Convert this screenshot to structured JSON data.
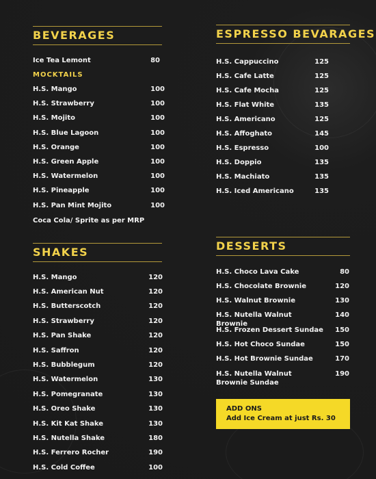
{
  "beverages": {
    "title": "BEVERAGES",
    "items": [
      {
        "name": "Ice Tea Lemont",
        "price": 80
      }
    ],
    "mocktails": {
      "title": "MOCKTAILS",
      "items": [
        {
          "name": "H.S. Mango",
          "price": 100
        },
        {
          "name": "H.S. Strawberry",
          "price": 100
        },
        {
          "name": "H.S. Mojito",
          "price": 100
        },
        {
          "name": "H.S. Blue Lagoon",
          "price": 100
        },
        {
          "name": "H.S. Orange",
          "price": 100
        },
        {
          "name": "H.S. Green Apple",
          "price": 100
        },
        {
          "name": "H.S. Watermelon",
          "price": 100
        },
        {
          "name": "H.S. Pineapple",
          "price": 100
        },
        {
          "name": "H.S. Pan Mint Mojito",
          "price": 100
        }
      ]
    },
    "note": "Coca Cola/ Sprite as per MRP"
  },
  "shakes": {
    "title": "SHAKES",
    "items": [
      {
        "name": "H.S. Mango",
        "price": 120
      },
      {
        "name": "H.S. American Nut",
        "price": 120
      },
      {
        "name": "H.S. Butterscotch",
        "price": 120
      },
      {
        "name": "H.S. Strawberry",
        "price": 120
      },
      {
        "name": "H.S. Pan Shake",
        "price": 120
      },
      {
        "name": "H.S. Saffron",
        "price": 120
      },
      {
        "name": "H.S. Bubblegum",
        "price": 120
      },
      {
        "name": "H.S. Watermelon",
        "price": 130
      },
      {
        "name": "H.S. Pomegranate",
        "price": 130
      },
      {
        "name": "H.S. Oreo Shake",
        "price": 130
      },
      {
        "name": "H.S. Kit Kat Shake",
        "price": 130
      },
      {
        "name": "H.S. Nutella Shake",
        "price": 180
      },
      {
        "name": "H.S. Ferrero Rocher",
        "price": 190
      },
      {
        "name": "H.S. Cold Coffee",
        "price": 100
      }
    ]
  },
  "espresso": {
    "title": "ESPRESSO BEVARAGES",
    "items": [
      {
        "name": "H.S. Cappuccino",
        "price": 125
      },
      {
        "name": "H.S. Cafe Latte",
        "price": 125
      },
      {
        "name": "H.S. Cafe Mocha",
        "price": 125
      },
      {
        "name": "H.S. Flat White",
        "price": 135
      },
      {
        "name": "H.S. Americano",
        "price": 125
      },
      {
        "name": "H.S. Affoghato",
        "price": 145
      },
      {
        "name": "H.S. Espresso",
        "price": 100
      },
      {
        "name": "H.S. Doppio",
        "price": 135
      },
      {
        "name": "H.S. Machiato",
        "price": 135
      },
      {
        "name": "H.S. Iced Americano",
        "price": 135
      }
    ]
  },
  "desserts": {
    "title": "DESSERTS",
    "items": [
      {
        "name": "H.S. Choco Lava Cake",
        "price": 80
      },
      {
        "name": "H.S. Chocolate Brownie",
        "price": 120
      },
      {
        "name": "H.S. Walnut Brownie",
        "price": 130
      },
      {
        "name": "H.S. Nutella Walnut Brownie",
        "price": 140
      },
      {
        "name": "H.S. Frozen Dessert Sundae",
        "price": 150
      },
      {
        "name": "H.S. Hot Choco Sundae",
        "price": 150
      },
      {
        "name": "H.S. Hot Brownie Sundae",
        "price": 170
      },
      {
        "name": "H.S. Nutella Walnut Brownie Sundae",
        "price": 190
      }
    ]
  },
  "add_ons": {
    "title": "ADD ONS",
    "text": "Add Ice Cream at just Rs. 30"
  }
}
